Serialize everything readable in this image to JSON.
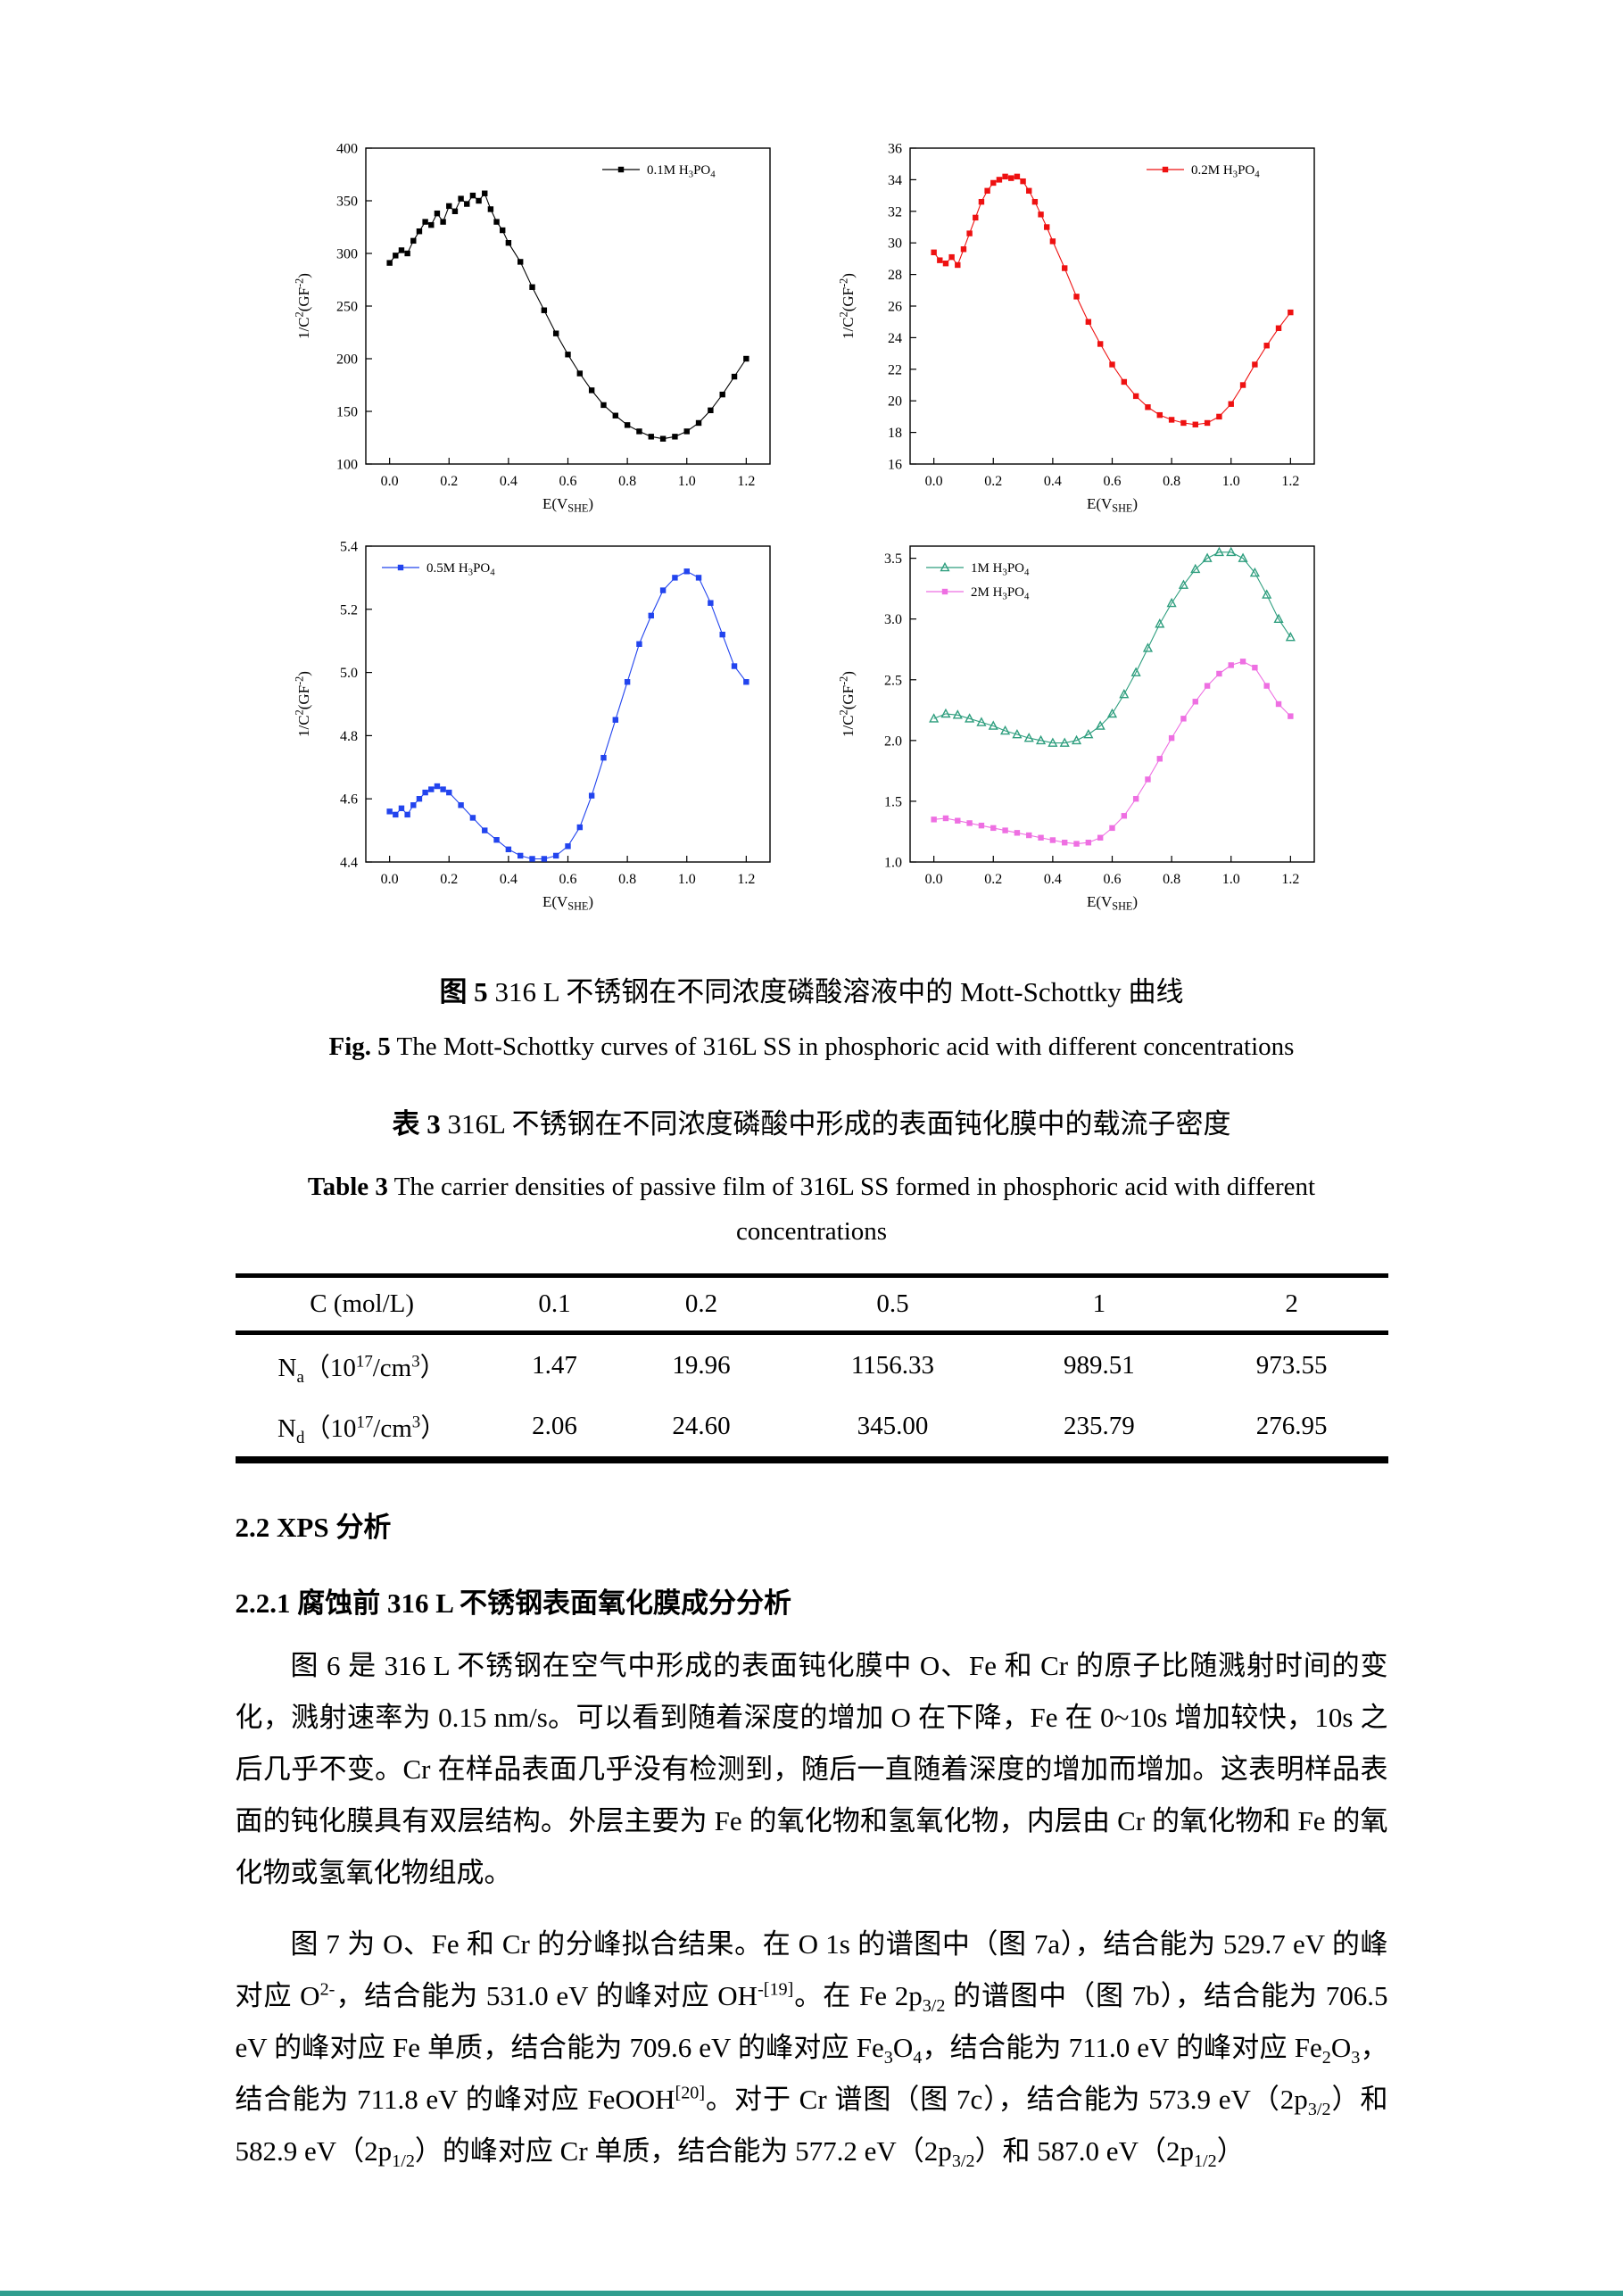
{
  "colors": {
    "c01m": "#000000",
    "c02m": "#ee1111",
    "c05m": "#2244ee",
    "c1m": "#2e9e7e",
    "c2m": "#ee6fe2",
    "page_edge": "#2f9e8e"
  },
  "captions": {
    "fig5_zh_bold": "图 5",
    "fig5_zh_rest": " 316 L 不锈钢在不同浓度磷酸溶液中的 Mott-Schottky 曲线",
    "fig5_en_bold": "Fig. 5",
    "fig5_en_rest": " The Mott-Schottky curves of 316L SS in phosphoric acid with different concentrations",
    "table3_zh_bold": "表 3",
    "table3_zh_rest": " 316L 不锈钢在不同浓度磷酸中形成的表面钝化膜中的载流子密度",
    "table3_en_bold": "Table 3",
    "table3_en_rest": " The carrier densities of passive film of 316L SS formed in phosphoric acid with different",
    "table3_en_line2": "concentrations"
  },
  "table3": {
    "header": [
      "C (mol/L)",
      "0.1",
      "0.2",
      "0.5",
      "1",
      "2"
    ],
    "rows": [
      {
        "label_html": "N<sub>a</sub>（10<sup>17</sup>/cm<sup>3</sup>）",
        "values": [
          "1.47",
          "19.96",
          "1156.33",
          "989.51",
          "973.55"
        ]
      },
      {
        "label_html": "N<sub>d</sub>（10<sup>17</sup>/cm<sup>3</sup>）",
        "values": [
          "2.06",
          "24.60",
          "345.00",
          "235.79",
          "276.95"
        ]
      }
    ]
  },
  "headings": {
    "s22": "2.2 XPS 分析",
    "s221": "2.2.1 腐蚀前 316 L 不锈钢表面氧化膜成分分析"
  },
  "paragraphs": {
    "p1_html": "图 6 是 316 L 不锈钢在空气中形成的表面钝化膜中 O、Fe 和 Cr 的原子比随溅射时间的变化，溅射速率为 0.15 nm/s。可以看到随着深度的增加 O 在下降，Fe 在 0~10s 增加较快，10s 之后几乎不变。Cr 在样品表面几乎没有检测到，随后一直随着深度的增加而增加。这表明样品表面的钝化膜具有双层结构。外层主要为 Fe 的氧化物和氢氧化物，内层由 Cr 的氧化物和 Fe 的氧化物或氢氧化物组成。",
    "p2_html": "图 7 为 O、Fe 和 Cr 的分峰拟合结果。在 O 1s 的谱图中（图 7a），结合能为 529.7 eV 的峰对应 O<sup>2-</sup>，结合能为 531.0 eV 的峰对应 OH<sup>-[19]</sup>。在 Fe 2p<sub>3/2</sub> 的谱图中（图 7b），结合能为 706.5 eV 的峰对应 Fe 单质，结合能为 709.6 eV 的峰对应 Fe<sub>3</sub>O<sub>4</sub>，结合能为 711.0 eV 的峰对应 Fe<sub>2</sub>O<sub>3</sub>，结合能为 711.8 eV 的峰对应 FeOOH<sup>[20]</sup>。对于 Cr 谱图（图 7c），结合能为 573.9 eV（2p<sub>3/2</sub>）和 582.9 eV（2p<sub>1/2</sub>）的峰对应 Cr 单质，结合能为 577.2 eV（2p<sub>3/2</sub>）和 587.0 eV（2p<sub>1/2</sub>）"
  },
  "chart_data": [
    {
      "type": "scatter",
      "xlabel": "E(V_{SHE})",
      "ylabel": "1/C^{2}(GF^{-2})",
      "xlim": [
        -0.08,
        1.28
      ],
      "ylim": [
        100,
        400
      ],
      "xticks": [
        "0.0",
        "0.2",
        "0.4",
        "0.6",
        "0.8",
        "1.0",
        "1.2"
      ],
      "yticks": [
        "100",
        "150",
        "200",
        "250",
        "300",
        "350",
        "400"
      ],
      "legend_pos": "tr",
      "series": [
        {
          "name": "0.1M H_{3}PO_{4}",
          "color": "#000000",
          "marker": "square",
          "points": [
            [
              0.0,
              291
            ],
            [
              0.02,
              298
            ],
            [
              0.04,
              303
            ],
            [
              0.06,
              300
            ],
            [
              0.08,
              312
            ],
            [
              0.1,
              321
            ],
            [
              0.12,
              330
            ],
            [
              0.14,
              327
            ],
            [
              0.16,
              338
            ],
            [
              0.18,
              330
            ],
            [
              0.2,
              345
            ],
            [
              0.22,
              340
            ],
            [
              0.24,
              352
            ],
            [
              0.26,
              347
            ],
            [
              0.28,
              355
            ],
            [
              0.3,
              350
            ],
            [
              0.32,
              357
            ],
            [
              0.34,
              342
            ],
            [
              0.36,
              330
            ],
            [
              0.38,
              322
            ],
            [
              0.4,
              310
            ],
            [
              0.44,
              292
            ],
            [
              0.48,
              268
            ],
            [
              0.52,
              246
            ],
            [
              0.56,
              224
            ],
            [
              0.6,
              204
            ],
            [
              0.64,
              186
            ],
            [
              0.68,
              170
            ],
            [
              0.72,
              156
            ],
            [
              0.76,
              146
            ],
            [
              0.8,
              137
            ],
            [
              0.84,
              131
            ],
            [
              0.88,
              126
            ],
            [
              0.92,
              124
            ],
            [
              0.96,
              126
            ],
            [
              1.0,
              131
            ],
            [
              1.04,
              139
            ],
            [
              1.08,
              151
            ],
            [
              1.12,
              166
            ],
            [
              1.16,
              183
            ],
            [
              1.2,
              200
            ]
          ]
        }
      ]
    },
    {
      "type": "scatter",
      "xlabel": "E(V_{SHE})",
      "ylabel": "1/C^{2}(GF^{-2})",
      "xlim": [
        -0.08,
        1.28
      ],
      "ylim": [
        16,
        36
      ],
      "xticks": [
        "0.0",
        "0.2",
        "0.4",
        "0.6",
        "0.8",
        "1.0",
        "1.2"
      ],
      "yticks": [
        "16",
        "18",
        "20",
        "22",
        "24",
        "26",
        "28",
        "30",
        "32",
        "34",
        "36"
      ],
      "legend_pos": "tr",
      "series": [
        {
          "name": "0.2M H_{3}PO_{4}",
          "color": "#ee1111",
          "marker": "square",
          "points": [
            [
              0.0,
              29.4
            ],
            [
              0.02,
              28.9
            ],
            [
              0.04,
              28.7
            ],
            [
              0.06,
              29.1
            ],
            [
              0.08,
              28.6
            ],
            [
              0.1,
              29.6
            ],
            [
              0.12,
              30.6
            ],
            [
              0.14,
              31.6
            ],
            [
              0.16,
              32.6
            ],
            [
              0.18,
              33.3
            ],
            [
              0.2,
              33.8
            ],
            [
              0.22,
              34.0
            ],
            [
              0.24,
              34.2
            ],
            [
              0.26,
              34.1
            ],
            [
              0.28,
              34.2
            ],
            [
              0.3,
              33.9
            ],
            [
              0.32,
              33.3
            ],
            [
              0.34,
              32.6
            ],
            [
              0.36,
              31.8
            ],
            [
              0.38,
              31.0
            ],
            [
              0.4,
              30.1
            ],
            [
              0.44,
              28.4
            ],
            [
              0.48,
              26.6
            ],
            [
              0.52,
              25.0
            ],
            [
              0.56,
              23.6
            ],
            [
              0.6,
              22.3
            ],
            [
              0.64,
              21.2
            ],
            [
              0.68,
              20.3
            ],
            [
              0.72,
              19.6
            ],
            [
              0.76,
              19.1
            ],
            [
              0.8,
              18.8
            ],
            [
              0.84,
              18.6
            ],
            [
              0.88,
              18.5
            ],
            [
              0.92,
              18.6
            ],
            [
              0.96,
              19.0
            ],
            [
              1.0,
              19.8
            ],
            [
              1.04,
              21.0
            ],
            [
              1.08,
              22.3
            ],
            [
              1.12,
              23.5
            ],
            [
              1.16,
              24.6
            ],
            [
              1.2,
              25.6
            ]
          ]
        }
      ]
    },
    {
      "type": "scatter",
      "xlabel": "E(V_{SHE})",
      "ylabel": "1/C^{2}(GF^{-2})",
      "xlim": [
        -0.08,
        1.28
      ],
      "ylim": [
        4.4,
        5.4
      ],
      "xticks": [
        "0.0",
        "0.2",
        "0.4",
        "0.6",
        "0.8",
        "1.0",
        "1.2"
      ],
      "yticks": [
        "4.4",
        "4.6",
        "4.8",
        "5.0",
        "5.2",
        "5.4"
      ],
      "legend_pos": "tl",
      "series": [
        {
          "name": "0.5M H_{3}PO_{4}",
          "color": "#2244ee",
          "marker": "square",
          "points": [
            [
              0.0,
              4.56
            ],
            [
              0.02,
              4.55
            ],
            [
              0.04,
              4.57
            ],
            [
              0.06,
              4.55
            ],
            [
              0.08,
              4.58
            ],
            [
              0.1,
              4.6
            ],
            [
              0.12,
              4.62
            ],
            [
              0.14,
              4.63
            ],
            [
              0.16,
              4.64
            ],
            [
              0.18,
              4.63
            ],
            [
              0.2,
              4.62
            ],
            [
              0.24,
              4.58
            ],
            [
              0.28,
              4.54
            ],
            [
              0.32,
              4.5
            ],
            [
              0.36,
              4.47
            ],
            [
              0.4,
              4.44
            ],
            [
              0.44,
              4.42
            ],
            [
              0.48,
              4.41
            ],
            [
              0.52,
              4.41
            ],
            [
              0.56,
              4.42
            ],
            [
              0.6,
              4.45
            ],
            [
              0.64,
              4.51
            ],
            [
              0.68,
              4.61
            ],
            [
              0.72,
              4.73
            ],
            [
              0.76,
              4.85
            ],
            [
              0.8,
              4.97
            ],
            [
              0.84,
              5.09
            ],
            [
              0.88,
              5.18
            ],
            [
              0.92,
              5.26
            ],
            [
              0.96,
              5.3
            ],
            [
              1.0,
              5.32
            ],
            [
              1.04,
              5.3
            ],
            [
              1.08,
              5.22
            ],
            [
              1.12,
              5.12
            ],
            [
              1.16,
              5.02
            ],
            [
              1.2,
              4.97
            ]
          ]
        }
      ]
    },
    {
      "type": "scatter",
      "xlabel": "E(V_{SHE})",
      "ylabel": "1/C^{2}(GF^{-2})",
      "xlim": [
        -0.08,
        1.28
      ],
      "ylim": [
        1.0,
        3.6
      ],
      "xticks": [
        "0.0",
        "0.2",
        "0.4",
        "0.6",
        "0.8",
        "1.0",
        "1.2"
      ],
      "yticks": [
        "1.0",
        "1.5",
        "2.0",
        "2.5",
        "3.0",
        "3.5"
      ],
      "legend_pos": "tl",
      "series": [
        {
          "name": "1M H_{3}PO_{4}",
          "color": "#2e9e7e",
          "marker": "triangle-open",
          "points": [
            [
              0.0,
              2.18
            ],
            [
              0.04,
              2.22
            ],
            [
              0.08,
              2.21
            ],
            [
              0.12,
              2.18
            ],
            [
              0.16,
              2.15
            ],
            [
              0.2,
              2.12
            ],
            [
              0.24,
              2.08
            ],
            [
              0.28,
              2.05
            ],
            [
              0.32,
              2.02
            ],
            [
              0.36,
              2.0
            ],
            [
              0.4,
              1.98
            ],
            [
              0.44,
              1.98
            ],
            [
              0.48,
              2.0
            ],
            [
              0.52,
              2.05
            ],
            [
              0.56,
              2.12
            ],
            [
              0.6,
              2.22
            ],
            [
              0.64,
              2.38
            ],
            [
              0.68,
              2.56
            ],
            [
              0.72,
              2.76
            ],
            [
              0.76,
              2.96
            ],
            [
              0.8,
              3.13
            ],
            [
              0.84,
              3.28
            ],
            [
              0.88,
              3.41
            ],
            [
              0.92,
              3.5
            ],
            [
              0.96,
              3.55
            ],
            [
              1.0,
              3.55
            ],
            [
              1.04,
              3.5
            ],
            [
              1.08,
              3.38
            ],
            [
              1.12,
              3.2
            ],
            [
              1.16,
              3.0
            ],
            [
              1.2,
              2.85
            ]
          ]
        },
        {
          "name": "2M H_{3}PO_{4}",
          "color": "#ee6fe2",
          "marker": "square",
          "points": [
            [
              0.0,
              1.35
            ],
            [
              0.04,
              1.36
            ],
            [
              0.08,
              1.34
            ],
            [
              0.12,
              1.32
            ],
            [
              0.16,
              1.3
            ],
            [
              0.2,
              1.28
            ],
            [
              0.24,
              1.26
            ],
            [
              0.28,
              1.24
            ],
            [
              0.32,
              1.22
            ],
            [
              0.36,
              1.2
            ],
            [
              0.4,
              1.18
            ],
            [
              0.44,
              1.16
            ],
            [
              0.48,
              1.15
            ],
            [
              0.52,
              1.16
            ],
            [
              0.56,
              1.2
            ],
            [
              0.6,
              1.28
            ],
            [
              0.64,
              1.38
            ],
            [
              0.68,
              1.52
            ],
            [
              0.72,
              1.68
            ],
            [
              0.76,
              1.85
            ],
            [
              0.8,
              2.02
            ],
            [
              0.84,
              2.18
            ],
            [
              0.88,
              2.32
            ],
            [
              0.92,
              2.45
            ],
            [
              0.96,
              2.55
            ],
            [
              1.0,
              2.62
            ],
            [
              1.04,
              2.65
            ],
            [
              1.08,
              2.6
            ],
            [
              1.12,
              2.45
            ],
            [
              1.16,
              2.3
            ],
            [
              1.2,
              2.2
            ]
          ]
        }
      ]
    }
  ]
}
